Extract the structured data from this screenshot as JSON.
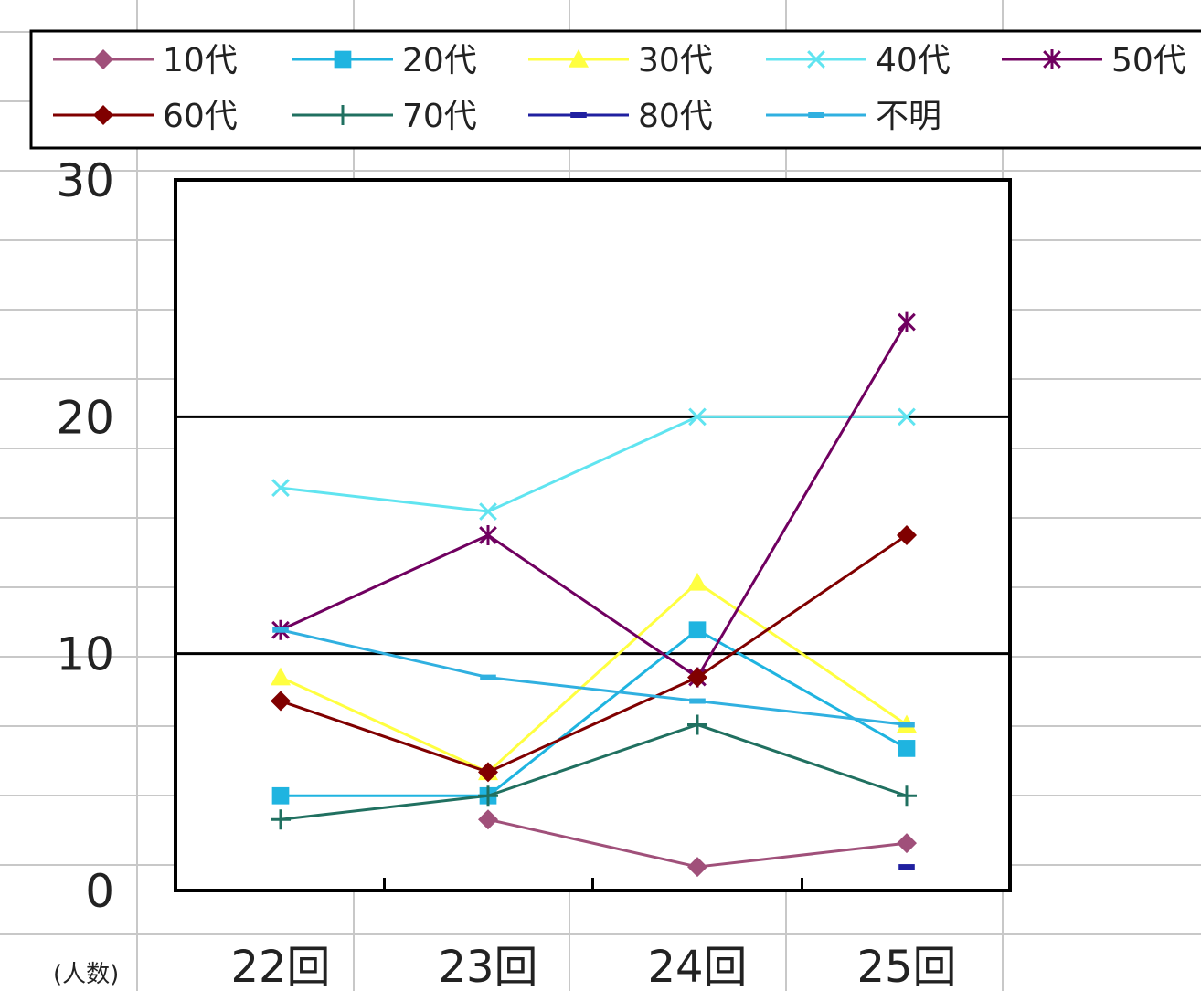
{
  "chart_data": {
    "type": "line",
    "title": "",
    "xlabel": "",
    "ylabel": "(人数)",
    "ylim": [
      0,
      30
    ],
    "yticks": [
      0,
      10,
      20,
      30
    ],
    "grid": "horizontal",
    "legend_position": "top",
    "categories": [
      "22回",
      "23回",
      "24回",
      "25回"
    ],
    "series": [
      {
        "name": "10代",
        "color": "#a0507a",
        "marker": "diamond",
        "values": [
          null,
          3,
          1,
          2
        ]
      },
      {
        "name": "20代",
        "color": "#1fb4e0",
        "marker": "square",
        "values": [
          4,
          4,
          11,
          6
        ]
      },
      {
        "name": "30代",
        "color": "#ffff40",
        "marker": "triangle",
        "values": [
          9,
          5,
          13,
          7
        ]
      },
      {
        "name": "40代",
        "color": "#60e4f0",
        "marker": "x",
        "values": [
          17,
          16,
          20,
          20
        ]
      },
      {
        "name": "50代",
        "color": "#700060",
        "marker": "star",
        "values": [
          11,
          15,
          9,
          24
        ]
      },
      {
        "name": "60代",
        "color": "#800000",
        "marker": "diamond",
        "values": [
          8,
          5,
          9,
          15
        ]
      },
      {
        "name": "70代",
        "color": "#207060",
        "marker": "plus",
        "values": [
          3,
          4,
          7,
          4
        ]
      },
      {
        "name": "80代",
        "color": "#2020a0",
        "marker": "dash",
        "values": [
          null,
          null,
          null,
          1
        ]
      },
      {
        "name": "不明",
        "color": "#30b0e0",
        "marker": "dash",
        "values": [
          11,
          9,
          8,
          7
        ]
      }
    ]
  }
}
